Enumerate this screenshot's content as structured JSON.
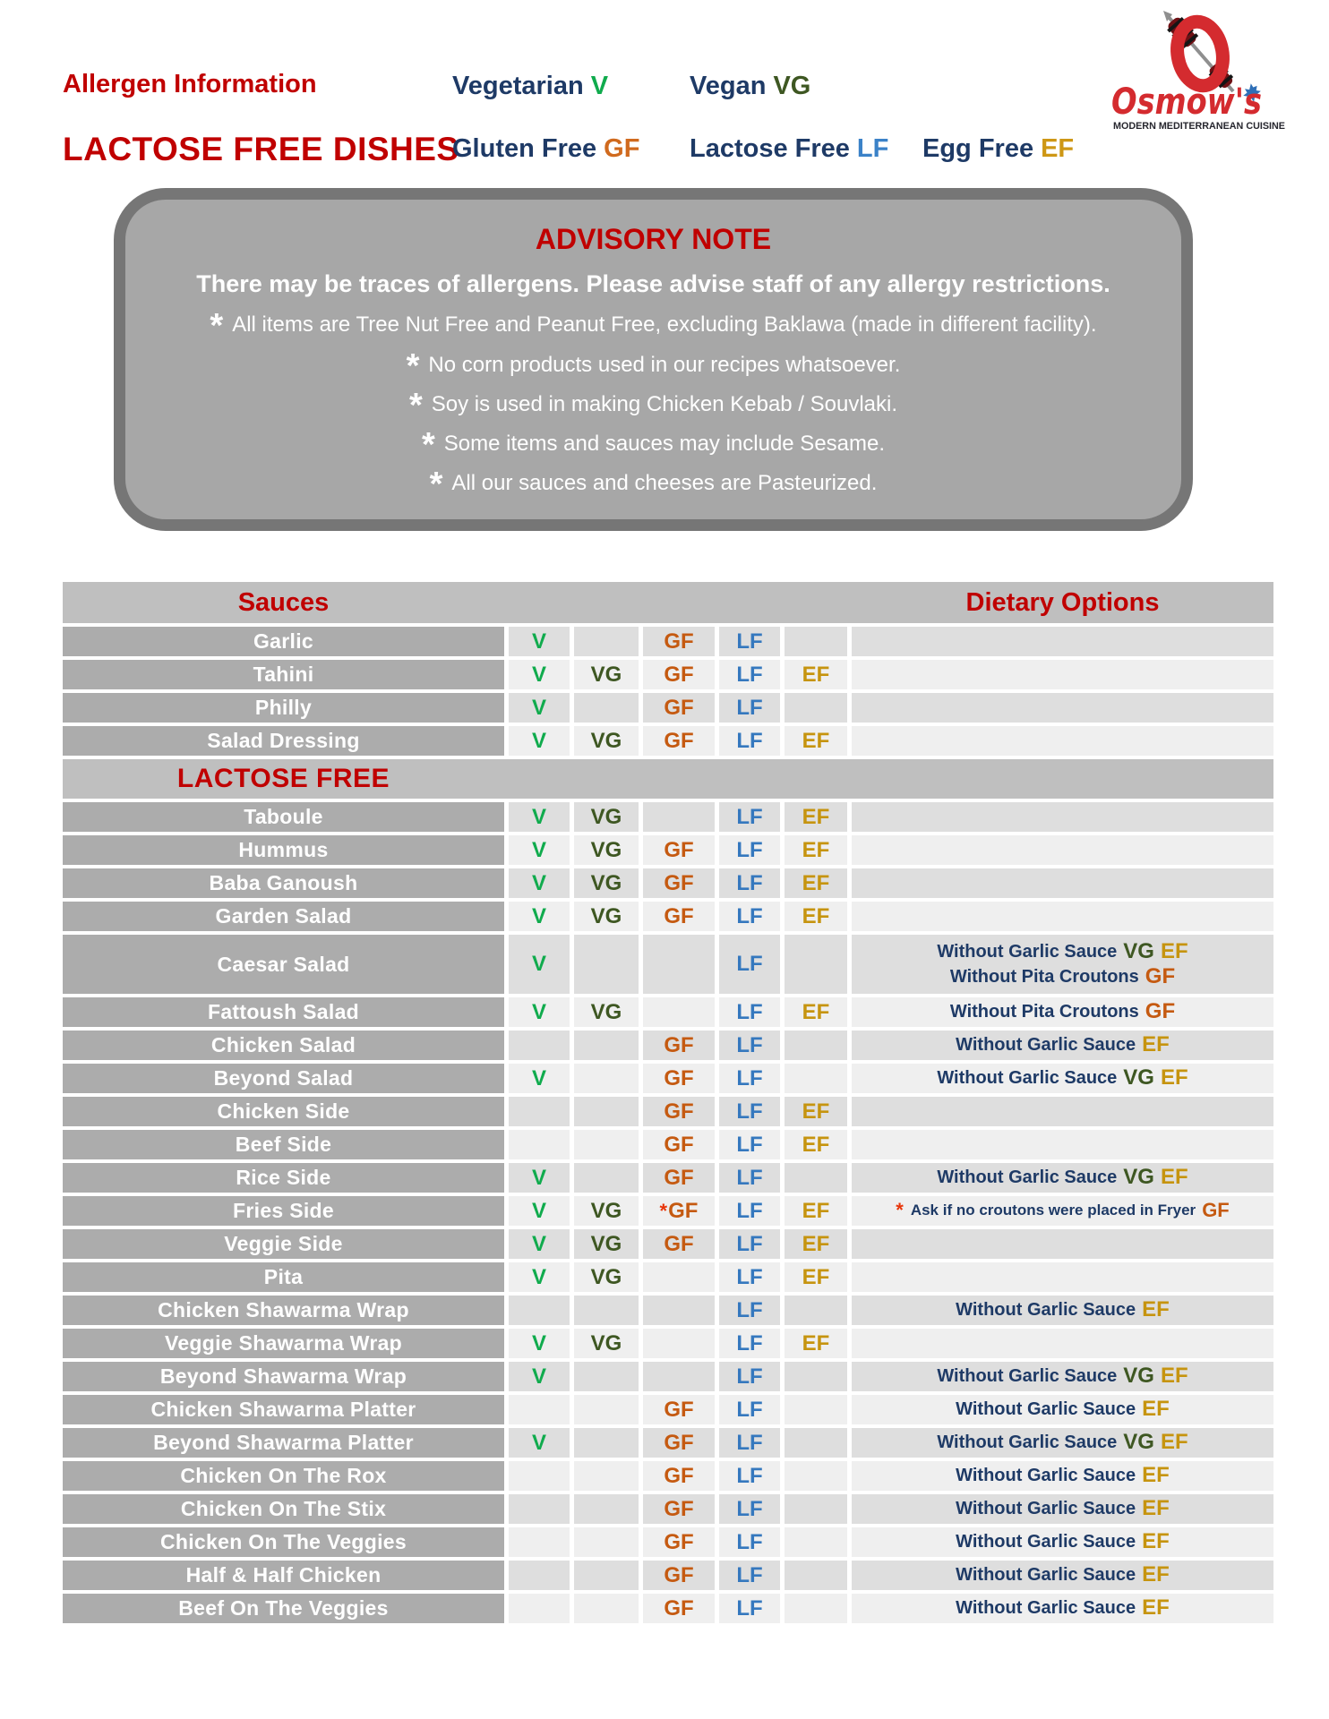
{
  "colors": {
    "heading_red": "#C00000",
    "label_navy": "#1E3A66",
    "vegetarian_green": "#10AB4D",
    "vegan_dark_green": "#3E5722",
    "gluten_free_orange": "#C55A11",
    "lactose_free_blue": "#3578BE",
    "egg_free_gold": "#C6940F",
    "advisory_fill": "#A7A7A7",
    "advisory_border": "#767676",
    "table_header_gray": "#BFBFBF",
    "name_cell_gray": "#ACACAC",
    "row_dark": "#DEDEDE",
    "row_light": "#EFEFEF"
  },
  "header": {
    "title_small": "Allergen Information",
    "title_large": "LACTOSE FREE DISHES",
    "legend": [
      {
        "label": "Vegetarian",
        "badge": "V"
      },
      {
        "label": "Vegan",
        "badge": "VG"
      },
      {
        "label": "Gluten Free",
        "badge": "GF"
      },
      {
        "label": "Lactose Free",
        "badge": "LF"
      },
      {
        "label": "Egg Free",
        "badge": "EF"
      }
    ]
  },
  "logo": {
    "name": "Osmow's",
    "tagline": "MODERN MEDITERRANEAN CUISINE"
  },
  "advisory": {
    "title": "ADVISORY NOTE",
    "intro": "There may be traces of allergens. Please advise staff of any allergy restrictions.",
    "notes": [
      "All items are Tree Nut Free and Peanut Free, excluding Baklawa (made in different facility).",
      "No corn products used in our recipes whatsoever.",
      "Soy is used in making Chicken Kebab / Souvlaki.",
      "Some items and sauces may include Sesame.",
      "All our sauces and cheeses are Pasteurized."
    ]
  },
  "table": {
    "header": {
      "left": "Sauces",
      "right": "Dietary Options"
    },
    "badge_columns": [
      "V",
      "VG",
      "GF",
      "LF",
      "EF"
    ],
    "rows": [
      {
        "name": "Garlic",
        "badges": [
          "V",
          "",
          "GF",
          "LF",
          ""
        ],
        "notes": []
      },
      {
        "name": "Tahini",
        "badges": [
          "V",
          "VG",
          "GF",
          "LF",
          "EF"
        ],
        "notes": []
      },
      {
        "name": "Philly",
        "badges": [
          "V",
          "",
          "GF",
          "LF",
          ""
        ],
        "notes": []
      },
      {
        "name": "Salad Dressing",
        "badges": [
          "V",
          "VG",
          "GF",
          "LF",
          "EF"
        ],
        "notes": []
      },
      {
        "section": "LACTOSE FREE"
      },
      {
        "name": "Taboule",
        "badges": [
          "V",
          "VG",
          "",
          "LF",
          "EF"
        ],
        "notes": []
      },
      {
        "name": "Hummus",
        "badges": [
          "V",
          "VG",
          "GF",
          "LF",
          "EF"
        ],
        "notes": []
      },
      {
        "name": "Baba Ganoush",
        "badges": [
          "V",
          "VG",
          "GF",
          "LF",
          "EF"
        ],
        "notes": []
      },
      {
        "name": "Garden Salad",
        "badges": [
          "V",
          "VG",
          "GF",
          "LF",
          "EF"
        ],
        "notes": []
      },
      {
        "name": "Caesar Salad",
        "tall": true,
        "badges": [
          "V",
          "",
          "",
          "LF",
          ""
        ],
        "notes": [
          {
            "text": "Without Garlic Sauce",
            "badges": [
              "VG",
              "EF"
            ]
          },
          {
            "text": "Without Pita Croutons",
            "badges": [
              "GF"
            ]
          }
        ]
      },
      {
        "name": "Fattoush Salad",
        "badges": [
          "V",
          "VG",
          "",
          "LF",
          "EF"
        ],
        "notes": [
          {
            "text": "Without Pita Croutons",
            "badges": [
              "GF"
            ]
          }
        ]
      },
      {
        "name": "Chicken Salad",
        "badges": [
          "",
          "",
          "GF",
          "LF",
          ""
        ],
        "notes": [
          {
            "text": "Without Garlic Sauce",
            "badges": [
              "EF"
            ]
          }
        ]
      },
      {
        "name": "Beyond Salad",
        "badges": [
          "V",
          "",
          "GF",
          "LF",
          ""
        ],
        "notes": [
          {
            "text": "Without Garlic Sauce",
            "badges": [
              "VG",
              "EF"
            ]
          }
        ]
      },
      {
        "name": "Chicken Side",
        "badges": [
          "",
          "",
          "GF",
          "LF",
          "EF"
        ],
        "notes": []
      },
      {
        "name": "Beef Side",
        "badges": [
          "",
          "",
          "GF",
          "LF",
          "EF"
        ],
        "notes": []
      },
      {
        "name": "Rice Side",
        "badges": [
          "V",
          "",
          "GF",
          "LF",
          ""
        ],
        "notes": [
          {
            "text": "Without Garlic Sauce",
            "badges": [
              "VG",
              "EF"
            ]
          }
        ]
      },
      {
        "name": "Fries Side",
        "badges": [
          "V",
          "VG",
          "*GF",
          "LF",
          "EF"
        ],
        "notes": [
          {
            "prefix": "*",
            "text": "Ask if no croutons were placed in Fryer",
            "badges": [
              "GF"
            ],
            "small": true
          }
        ]
      },
      {
        "name": "Veggie Side",
        "badges": [
          "V",
          "VG",
          "GF",
          "LF",
          "EF"
        ],
        "notes": []
      },
      {
        "name": "Pita",
        "badges": [
          "V",
          "VG",
          "",
          "LF",
          "EF"
        ],
        "notes": []
      },
      {
        "name": "Chicken Shawarma Wrap",
        "badges": [
          "",
          "",
          "",
          "LF",
          ""
        ],
        "notes": [
          {
            "text": "Without Garlic Sauce",
            "badges": [
              "EF"
            ]
          }
        ]
      },
      {
        "name": "Veggie Shawarma Wrap",
        "badges": [
          "V",
          "VG",
          "",
          "LF",
          "EF"
        ],
        "notes": []
      },
      {
        "name": "Beyond Shawarma Wrap",
        "badges": [
          "V",
          "",
          "",
          "LF",
          ""
        ],
        "notes": [
          {
            "text": "Without Garlic Sauce",
            "badges": [
              "VG",
              "EF"
            ]
          }
        ]
      },
      {
        "name": "Chicken Shawarma Platter",
        "badges": [
          "",
          "",
          "GF",
          "LF",
          ""
        ],
        "notes": [
          {
            "text": "Without Garlic Sauce",
            "badges": [
              "EF"
            ]
          }
        ]
      },
      {
        "name": "Beyond Shawarma Platter",
        "badges": [
          "V",
          "",
          "GF",
          "LF",
          ""
        ],
        "notes": [
          {
            "text": "Without Garlic Sauce",
            "badges": [
              "VG",
              "EF"
            ]
          }
        ]
      },
      {
        "name": "Chicken On The Rox",
        "badges": [
          "",
          "",
          "GF",
          "LF",
          ""
        ],
        "notes": [
          {
            "text": "Without Garlic Sauce",
            "badges": [
              "EF"
            ]
          }
        ]
      },
      {
        "name": "Chicken On The Stix",
        "badges": [
          "",
          "",
          "GF",
          "LF",
          ""
        ],
        "notes": [
          {
            "text": "Without Garlic Sauce",
            "badges": [
              "EF"
            ]
          }
        ]
      },
      {
        "name": "Chicken On The Veggies",
        "badges": [
          "",
          "",
          "GF",
          "LF",
          ""
        ],
        "notes": [
          {
            "text": "Without Garlic Sauce",
            "badges": [
              "EF"
            ]
          }
        ]
      },
      {
        "name": "Half & Half Chicken",
        "badges": [
          "",
          "",
          "GF",
          "LF",
          ""
        ],
        "notes": [
          {
            "text": "Without Garlic Sauce",
            "badges": [
              "EF"
            ]
          }
        ]
      },
      {
        "name": "Beef On The Veggies",
        "badges": [
          "",
          "",
          "GF",
          "LF",
          ""
        ],
        "notes": [
          {
            "text": "Without Garlic Sauce",
            "badges": [
              "EF"
            ]
          }
        ]
      }
    ]
  }
}
